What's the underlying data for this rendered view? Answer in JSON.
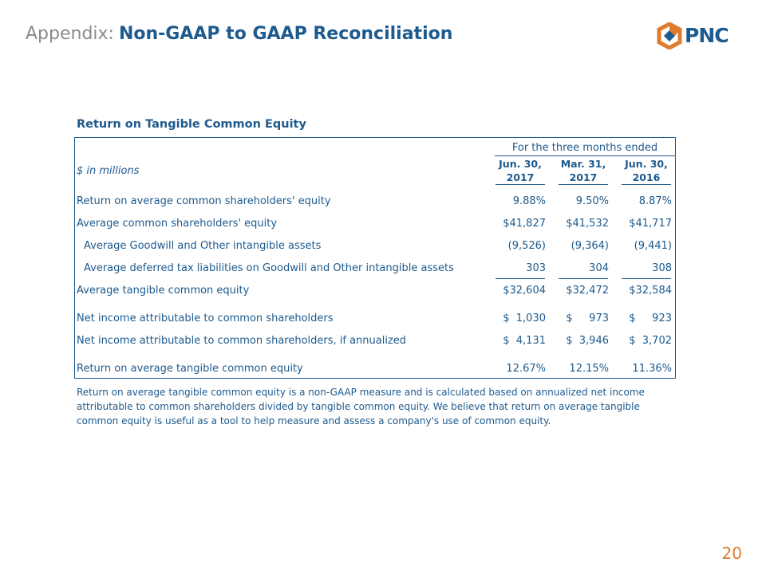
{
  "header": {
    "prefix": "Appendix:",
    "title": "Non-GAAP to GAAP Reconciliation",
    "logo_text": "PNC"
  },
  "section_title": "Return on Tangible Common Equity",
  "table": {
    "group_header": "For the three months ended",
    "units_label": "$ in millions",
    "columns": [
      {
        "line1": "Jun. 30,",
        "line2": "2017"
      },
      {
        "line1": "Mar. 31,",
        "line2": "2017"
      },
      {
        "line1": "Jun. 30,",
        "line2": "2016"
      }
    ],
    "rows": [
      {
        "label": "Return on average common shareholders' equity",
        "values": [
          "9.88%",
          "9.50%",
          "8.87%"
        ]
      },
      {
        "label": "Average common shareholders' equity",
        "values": [
          "$41,827",
          "$41,532",
          "$41,717"
        ]
      },
      {
        "label": "Average Goodwill and Other intangible assets",
        "values": [
          "(9,526)",
          "(9,364)",
          "(9,441)"
        ]
      },
      {
        "label": "Average deferred tax liabilities on Goodwill and Other intangible assets",
        "values": [
          "303",
          "304",
          "308"
        ]
      },
      {
        "label": "Average tangible common equity",
        "values": [
          "$32,604",
          "$32,472",
          "$32,584"
        ]
      },
      {
        "label": "Net income attributable to common shareholders",
        "values": [
          "$  1,030",
          "$     973",
          "$     923"
        ]
      },
      {
        "label": "Net income attributable to common shareholders, if annualized",
        "values": [
          "$  4,131",
          "$  3,946",
          "$  3,702"
        ]
      },
      {
        "label": "Return on average tangible common equity",
        "values": [
          "12.67%",
          "12.15%",
          "11.36%"
        ]
      }
    ]
  },
  "note": "Return on average tangible common equity is a non-GAAP measure and is calculated based on annualized net income attributable to common shareholders divided by tangible common equity.  We believe that return on average tangible common equity is useful as a tool to help measure and assess a company's use of common equity.",
  "page_number": "20",
  "colors": {
    "primary": "#1d5a8e",
    "muted": "#8a8a8a",
    "accent": "#e07b2c"
  }
}
